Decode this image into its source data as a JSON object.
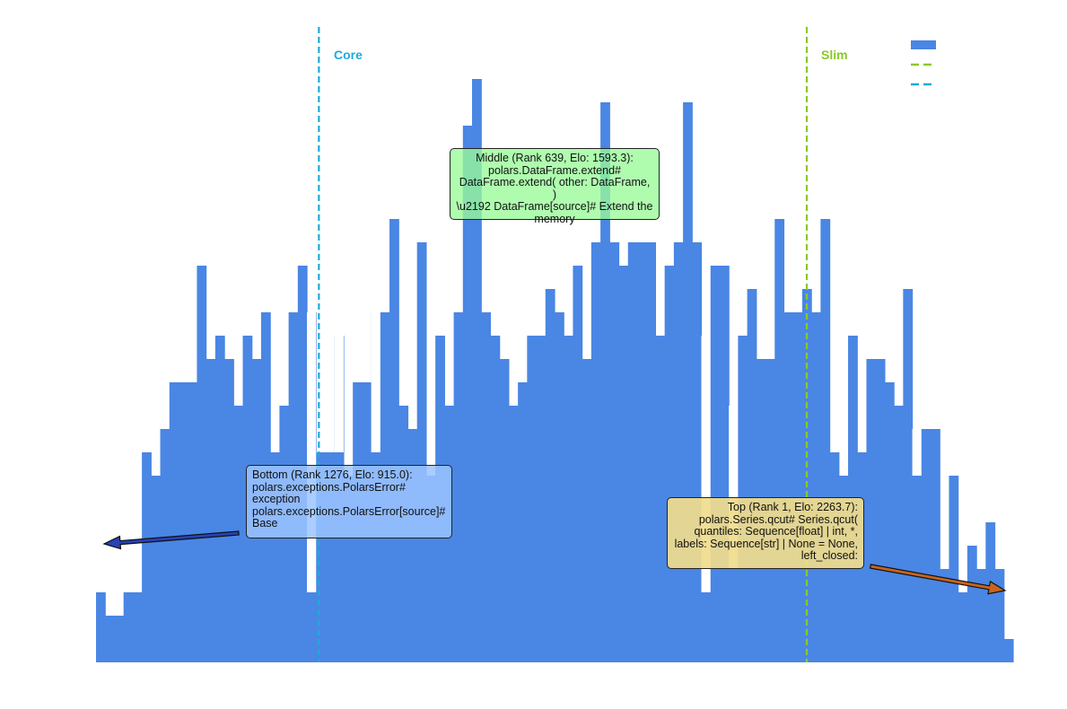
{
  "chart_data": {
    "type": "histogram",
    "title": "",
    "xlabel": "",
    "ylabel": "",
    "bin_count": 100,
    "ylim": [
      0,
      26
    ],
    "counts": [
      3,
      2,
      2,
      3,
      3,
      9,
      8,
      10,
      12,
      12,
      12,
      17,
      13,
      14,
      13,
      11,
      14,
      13,
      15,
      9,
      11,
      15,
      17,
      15,
      9,
      9,
      14,
      8,
      12,
      12,
      15,
      15,
      19,
      11,
      10,
      18,
      8,
      14,
      11,
      15,
      23,
      25,
      15,
      14,
      13,
      11,
      12,
      14,
      14,
      16,
      15,
      14,
      17,
      13,
      18,
      24,
      18,
      17,
      18,
      18,
      18,
      14,
      17,
      18,
      24,
      18,
      14,
      17,
      17,
      11,
      14,
      16,
      13,
      13,
      19,
      15,
      15,
      16,
      15,
      19,
      9,
      8,
      14,
      9,
      13,
      13,
      12,
      11,
      16,
      10,
      10,
      10,
      4,
      8,
      3,
      5,
      4,
      6,
      4,
      1
    ],
    "overlay_gaps": [
      {
        "bin": 23,
        "count": 3
      },
      {
        "bin": 26,
        "count": 9
      },
      {
        "bin": 30,
        "count": 9
      },
      {
        "bin": 66,
        "count": 3
      },
      {
        "bin": 69,
        "count": 4
      },
      {
        "bin": 89,
        "count": 8
      }
    ],
    "reference_lines": [
      {
        "label": "Core",
        "color": "#1eaadc",
        "bin_position": 24.3
      },
      {
        "label": "Slim",
        "color": "#8ac926",
        "bin_position": 77.5
      }
    ],
    "legend": {
      "placement": "top-right",
      "entries": [
        {
          "kind": "patch",
          "color": "#4a86e4",
          "label": ""
        },
        {
          "kind": "dashed",
          "color": "#8ac926",
          "label": ""
        },
        {
          "kind": "dashed",
          "color": "#1eaadc",
          "label": ""
        }
      ]
    },
    "annotations": [
      {
        "id": "middle",
        "text": "Middle (Rank 639, Elo: 1593.3): polars.DataFrame.extend# DataFrame.extend( other: DataFrame, ) \\u2192 DataFrame[source]# Extend the memory"
      },
      {
        "id": "bottom",
        "text": "Bottom (Rank 1276, Elo: 915.0): polars.exceptions.PolarsError# exception polars.exceptions.PolarsError[source]# Base"
      },
      {
        "id": "top",
        "text": "Top (Rank 1, Elo: 2263.7): polars.Series.qcut# Series.qcut( quantiles: Sequence[float] | int, *, labels: Sequence[str] | None = None, left_closed:"
      }
    ]
  },
  "colors": {
    "bar": "#4a86e4",
    "core": "#1eaadc",
    "slim": "#8ac926",
    "arrow_bottom": "#2742b8",
    "arrow_top": "#c8641e"
  },
  "labels": {
    "core": "Core",
    "slim": "Slim"
  },
  "annotation_lines": {
    "middle": [
      "Middle (Rank 639, Elo: 1593.3):",
      "polars.DataFrame.extend#",
      "DataFrame.extend( other: DataFrame, )",
      "\\u2192 DataFrame[source]# Extend the",
      "memory"
    ],
    "bottom": [
      "Bottom (Rank 1276, Elo: 915.0):",
      "polars.exceptions.PolarsError#",
      "exception",
      "polars.exceptions.PolarsError[source]#",
      "Base"
    ],
    "top": [
      "Top (Rank 1, Elo: 2263.7):",
      "polars.Series.qcut# Series.qcut(",
      "quantiles: Sequence[float] | int, *,",
      "labels: Sequence[str] | None = None,",
      "left_closed:"
    ]
  }
}
